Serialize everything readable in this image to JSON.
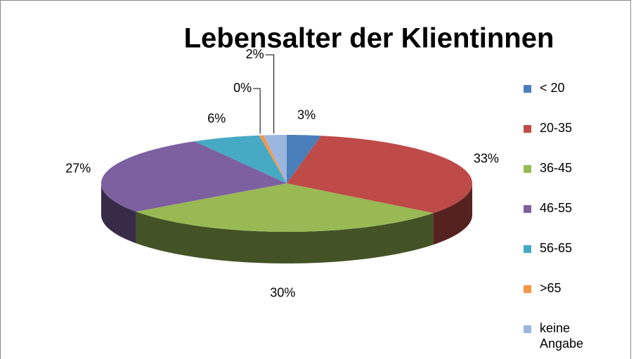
{
  "chart_data": {
    "type": "pie3d",
    "title": "Lebensalter der Klientinnen",
    "categories": [
      "< 20",
      "20-35",
      "36-45",
      "46-55",
      "56-65",
      ">65",
      "keine Angabe"
    ],
    "values": [
      3,
      33,
      30,
      27,
      6,
      0.4,
      2
    ],
    "value_labels": [
      "3%",
      "33%",
      "30%",
      "27%",
      "6%",
      "0%",
      "2%"
    ],
    "colors": [
      "#4a7ebb",
      "#be4b48",
      "#98b954",
      "#7d60a0",
      "#46aac5",
      "#f79646",
      "#9bb7e0"
    ],
    "legend": "right"
  }
}
